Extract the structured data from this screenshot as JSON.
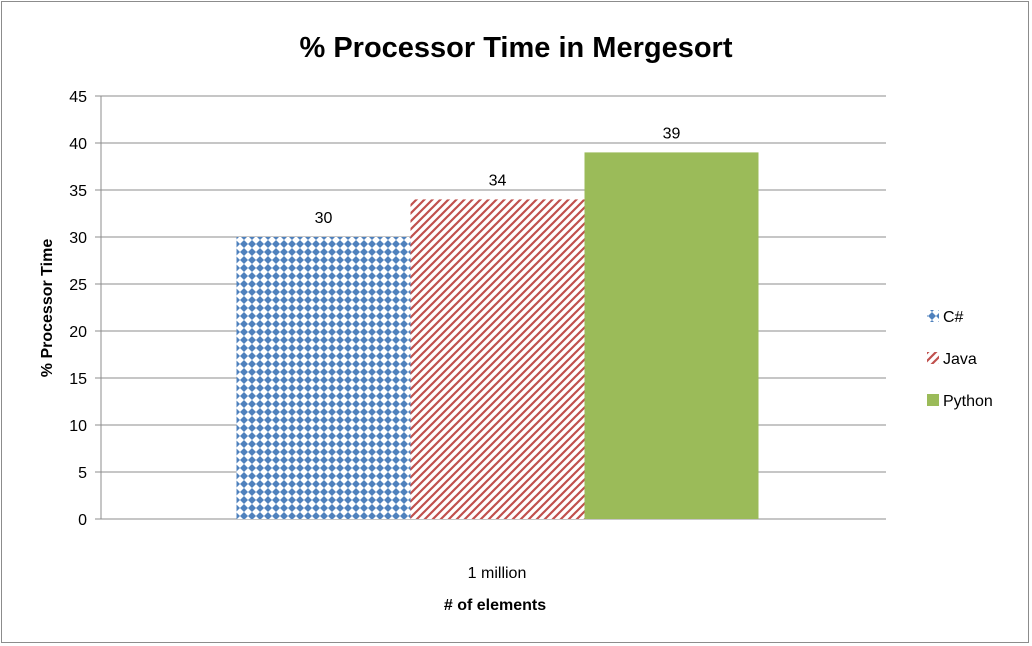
{
  "chart_data": {
    "type": "bar",
    "title": "% Processor Time in Mergesort",
    "xlabel": "# of elements",
    "ylabel": "% Processor Time",
    "categories": [
      "1 million"
    ],
    "ylim": [
      0,
      45
    ],
    "yticks": [
      0,
      5,
      10,
      15,
      20,
      25,
      30,
      35,
      40,
      45
    ],
    "grid": true,
    "legend_position": "right",
    "series": [
      {
        "name": "C#",
        "values": [
          30
        ],
        "color": "#4f81bd",
        "pattern": "diamond-checker"
      },
      {
        "name": "Java",
        "values": [
          34
        ],
        "color": "#c0504d",
        "pattern": "diagonal-stripes"
      },
      {
        "name": "Python",
        "values": [
          39
        ],
        "color": "#9bbb59",
        "pattern": "solid"
      }
    ],
    "data_labels": true
  }
}
